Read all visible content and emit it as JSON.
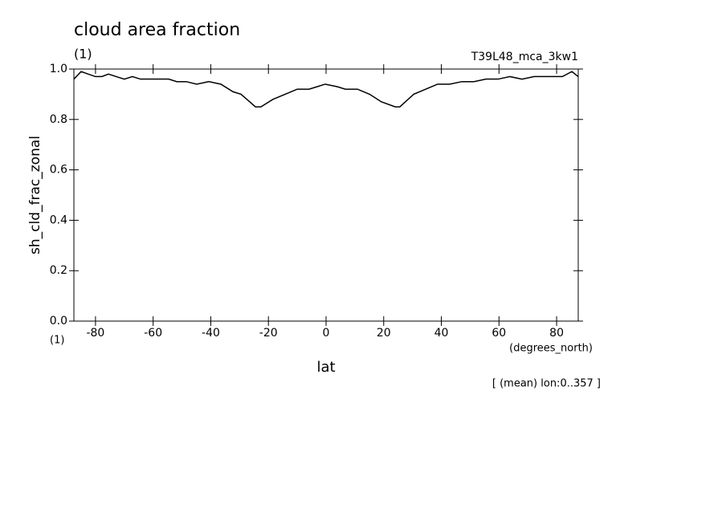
{
  "chart_data": {
    "type": "line",
    "title": "cloud area fraction",
    "title_units": "(1)",
    "dataset": "T39L48_mca_3kw1",
    "ylabel": "sh_cld_frac_zonal",
    "y_units": "(1)",
    "xlabel": "lat",
    "x_units": "(degrees_north)",
    "footnote": "[ (mean) lon:0..357 ]",
    "x": [
      -87.5,
      -85.0,
      -82.5,
      -80.0,
      -77.8,
      -75.5,
      -72.8,
      -70.0,
      -67.2,
      -64.4,
      -60.2,
      -57.4,
      -54.6,
      -51.8,
      -48.5,
      -44.9,
      -40.7,
      -36.5,
      -32.3,
      -29.5,
      -24.5,
      -22.6,
      -18.4,
      -14.2,
      -10.0,
      -5.9,
      -3.1,
      -0.3,
      3.9,
      6.7,
      10.9,
      15.1,
      19.2,
      24.0,
      25.6,
      30.4,
      34.6,
      38.7,
      42.9,
      47.1,
      51.3,
      55.5,
      59.7,
      63.8,
      68.0,
      72.2,
      75.8,
      79.2,
      82.0,
      85.3,
      87.5
    ],
    "series": [
      {
        "color": "#000000",
        "values": [
          0.96,
          0.99,
          0.98,
          0.97,
          0.97,
          0.98,
          0.97,
          0.96,
          0.97,
          0.96,
          0.96,
          0.96,
          0.96,
          0.95,
          0.95,
          0.94,
          0.95,
          0.94,
          0.91,
          0.9,
          0.85,
          0.85,
          0.88,
          0.9,
          0.92,
          0.92,
          0.93,
          0.94,
          0.93,
          0.92,
          0.92,
          0.9,
          0.87,
          0.85,
          0.85,
          0.9,
          0.92,
          0.94,
          0.94,
          0.95,
          0.95,
          0.96,
          0.96,
          0.97,
          0.96,
          0.97,
          0.97,
          0.97,
          0.97,
          0.99,
          0.97
        ]
      }
    ],
    "xlim": [
      -87.5,
      87.5
    ],
    "xticks": [
      -80,
      -60,
      -40,
      -20,
      0,
      20,
      40,
      60,
      80
    ],
    "ylim": [
      0,
      1
    ],
    "yticks": [
      {
        "value": 0,
        "label": "0.0"
      },
      {
        "value": 0.2,
        "label": "0.2"
      },
      {
        "value": 0.4,
        "label": "0.4"
      },
      {
        "value": 0.6,
        "label": "0.6"
      },
      {
        "value": 0.8,
        "label": "0.8"
      },
      {
        "value": 1,
        "label": "1.0"
      }
    ]
  }
}
